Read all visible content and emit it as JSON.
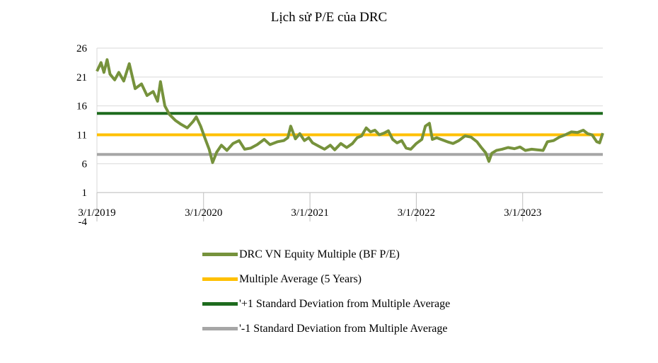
{
  "chart_data": {
    "type": "line",
    "title": "Lịch sử P/E của DRC",
    "xlabel": "",
    "ylabel": "",
    "ylim": [
      -4,
      26
    ],
    "y_ticks": [
      26,
      21,
      16,
      11,
      6,
      1,
      -4
    ],
    "x_range": [
      "2019-03-01",
      "2023-12-01"
    ],
    "x_ticks": [
      "3/1/2019",
      "3/1/2020",
      "3/1/2021",
      "3/1/2022",
      "3/1/2023"
    ],
    "grid": true,
    "legend_position": "bottom",
    "series": [
      {
        "name": "DRC VN Equity Multiple (BF P/E)",
        "color": "#76923c",
        "points": [
          [
            "2019-03-01",
            22.0
          ],
          [
            "2019-03-15",
            23.5
          ],
          [
            "2019-03-25",
            21.8
          ],
          [
            "2019-04-05",
            24.0
          ],
          [
            "2019-04-15",
            21.5
          ],
          [
            "2019-05-01",
            20.5
          ],
          [
            "2019-05-15",
            21.8
          ],
          [
            "2019-06-01",
            20.3
          ],
          [
            "2019-06-20",
            23.3
          ],
          [
            "2019-07-10",
            19.0
          ],
          [
            "2019-08-01",
            19.8
          ],
          [
            "2019-08-20",
            17.8
          ],
          [
            "2019-09-10",
            18.5
          ],
          [
            "2019-09-25",
            16.8
          ],
          [
            "2019-10-05",
            20.2
          ],
          [
            "2019-10-20",
            16.0
          ],
          [
            "2019-11-05",
            14.5
          ],
          [
            "2019-11-25",
            13.5
          ],
          [
            "2019-12-15",
            12.8
          ],
          [
            "2020-01-05",
            12.2
          ],
          [
            "2020-01-25",
            13.3
          ],
          [
            "2020-02-05",
            14.1
          ],
          [
            "2020-02-20",
            12.5
          ],
          [
            "2020-03-05",
            10.5
          ],
          [
            "2020-03-20",
            8.5
          ],
          [
            "2020-04-01",
            6.2
          ],
          [
            "2020-04-15",
            8.0
          ],
          [
            "2020-05-01",
            9.2
          ],
          [
            "2020-05-20",
            8.3
          ],
          [
            "2020-06-10",
            9.5
          ],
          [
            "2020-07-01",
            10.0
          ],
          [
            "2020-07-20",
            8.5
          ],
          [
            "2020-08-10",
            8.7
          ],
          [
            "2020-09-01",
            9.3
          ],
          [
            "2020-09-25",
            10.2
          ],
          [
            "2020-10-15",
            9.3
          ],
          [
            "2020-11-10",
            9.8
          ],
          [
            "2020-12-01",
            10.0
          ],
          [
            "2020-12-15",
            10.5
          ],
          [
            "2020-12-25",
            12.5
          ],
          [
            "2021-01-10",
            10.3
          ],
          [
            "2021-01-25",
            11.2
          ],
          [
            "2021-02-10",
            10.0
          ],
          [
            "2021-02-25",
            10.5
          ],
          [
            "2021-03-10",
            9.6
          ],
          [
            "2021-04-01",
            9.0
          ],
          [
            "2021-04-20",
            8.5
          ],
          [
            "2021-05-10",
            9.2
          ],
          [
            "2021-05-25",
            8.4
          ],
          [
            "2021-06-15",
            9.5
          ],
          [
            "2021-07-05",
            8.8
          ],
          [
            "2021-07-25",
            9.5
          ],
          [
            "2021-08-10",
            10.5
          ],
          [
            "2021-08-25",
            10.8
          ],
          [
            "2021-09-10",
            12.2
          ],
          [
            "2021-09-25",
            11.5
          ],
          [
            "2021-10-10",
            11.8
          ],
          [
            "2021-10-25",
            11.0
          ],
          [
            "2021-11-10",
            11.3
          ],
          [
            "2021-11-25",
            11.7
          ],
          [
            "2021-12-10",
            10.2
          ],
          [
            "2021-12-25",
            9.6
          ],
          [
            "2022-01-10",
            10.0
          ],
          [
            "2022-01-25",
            8.7
          ],
          [
            "2022-02-10",
            8.5
          ],
          [
            "2022-03-01",
            9.5
          ],
          [
            "2022-03-20",
            10.2
          ],
          [
            "2022-04-01",
            12.5
          ],
          [
            "2022-04-15",
            13.0
          ],
          [
            "2022-04-25",
            10.2
          ],
          [
            "2022-05-10",
            10.5
          ],
          [
            "2022-05-25",
            10.2
          ],
          [
            "2022-06-15",
            9.8
          ],
          [
            "2022-07-05",
            9.5
          ],
          [
            "2022-07-25",
            10.0
          ],
          [
            "2022-08-15",
            10.8
          ],
          [
            "2022-09-05",
            10.6
          ],
          [
            "2022-09-25",
            9.8
          ],
          [
            "2022-10-10",
            8.8
          ],
          [
            "2022-10-25",
            7.9
          ],
          [
            "2022-11-05",
            6.4
          ],
          [
            "2022-11-15",
            7.8
          ],
          [
            "2022-12-01",
            8.3
          ],
          [
            "2022-12-20",
            8.5
          ],
          [
            "2023-01-10",
            8.8
          ],
          [
            "2023-02-01",
            8.6
          ],
          [
            "2023-02-20",
            8.9
          ],
          [
            "2023-03-10",
            8.3
          ],
          [
            "2023-04-01",
            8.5
          ],
          [
            "2023-04-20",
            8.4
          ],
          [
            "2023-05-10",
            8.3
          ],
          [
            "2023-05-25",
            9.8
          ],
          [
            "2023-06-15",
            10.0
          ],
          [
            "2023-07-05",
            10.6
          ],
          [
            "2023-07-25",
            11.0
          ],
          [
            "2023-08-15",
            11.5
          ],
          [
            "2023-09-05",
            11.4
          ],
          [
            "2023-09-25",
            11.8
          ],
          [
            "2023-10-10",
            11.2
          ],
          [
            "2023-10-25",
            11.0
          ],
          [
            "2023-11-10",
            9.8
          ],
          [
            "2023-11-20",
            9.6
          ],
          [
            "2023-12-01",
            11.3
          ]
        ]
      },
      {
        "name": "Multiple Average (5 Years)",
        "color": "#ffc000",
        "value": 11.0
      },
      {
        "name": "'+1 Standard Deviation from Multiple Average",
        "color": "#1e6b1e",
        "value": 14.7
      },
      {
        "name": "'-1 Standard Deviation from Multiple Average",
        "color": "#a6a6a6",
        "value": 7.6
      }
    ]
  }
}
